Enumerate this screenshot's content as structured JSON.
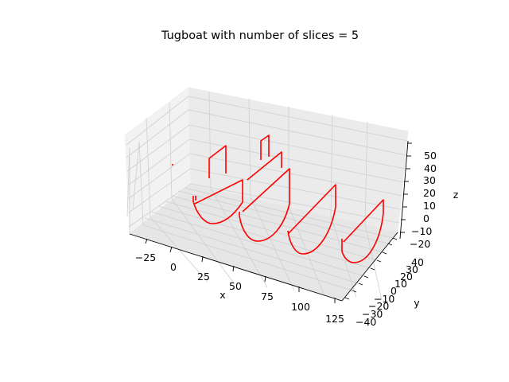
{
  "chart_data": {
    "type": "line",
    "projection": "3d",
    "title": "Tugboat with number of slices = 5",
    "xlabel": "x",
    "ylabel": "y",
    "zlabel": "z",
    "xlim": [
      -35,
      128
    ],
    "ylim": [
      -43,
      43
    ],
    "zlim": [
      -22,
      56
    ],
    "xticks": [
      "−25",
      "0",
      "25",
      "50",
      "75",
      "100",
      "125"
    ],
    "yticks": [
      "−40",
      "−30",
      "−20",
      "−10",
      "0",
      "10",
      "20",
      "30",
      "40"
    ],
    "zticks": [
      "−20",
      "−10",
      "0",
      "10",
      "20",
      "30",
      "40",
      "50"
    ],
    "grid": true,
    "pane_color": "#f2f2f2",
    "series_color": "#ff0000",
    "slices": [
      {
        "x": 0,
        "hull": "U-shaped hull section at x = 0",
        "superstructure": "rectangular frame at x = 0 rising to z = 50"
      },
      {
        "x": 25,
        "hull": "U-shaped hull section at x = 25",
        "superstructure": "rectangular frame at x = 25 rising to z = 50, plus a frame rising to z = 55"
      },
      {
        "x": 50,
        "hull": "U-shaped hull section at x = 50",
        "superstructure": "none"
      },
      {
        "x": 75,
        "hull": "U-shaped hull section at x = 75",
        "superstructure": "none"
      },
      {
        "x": 100,
        "hull": "U-shaped hull section at x = 100",
        "superstructure": "none"
      }
    ]
  }
}
